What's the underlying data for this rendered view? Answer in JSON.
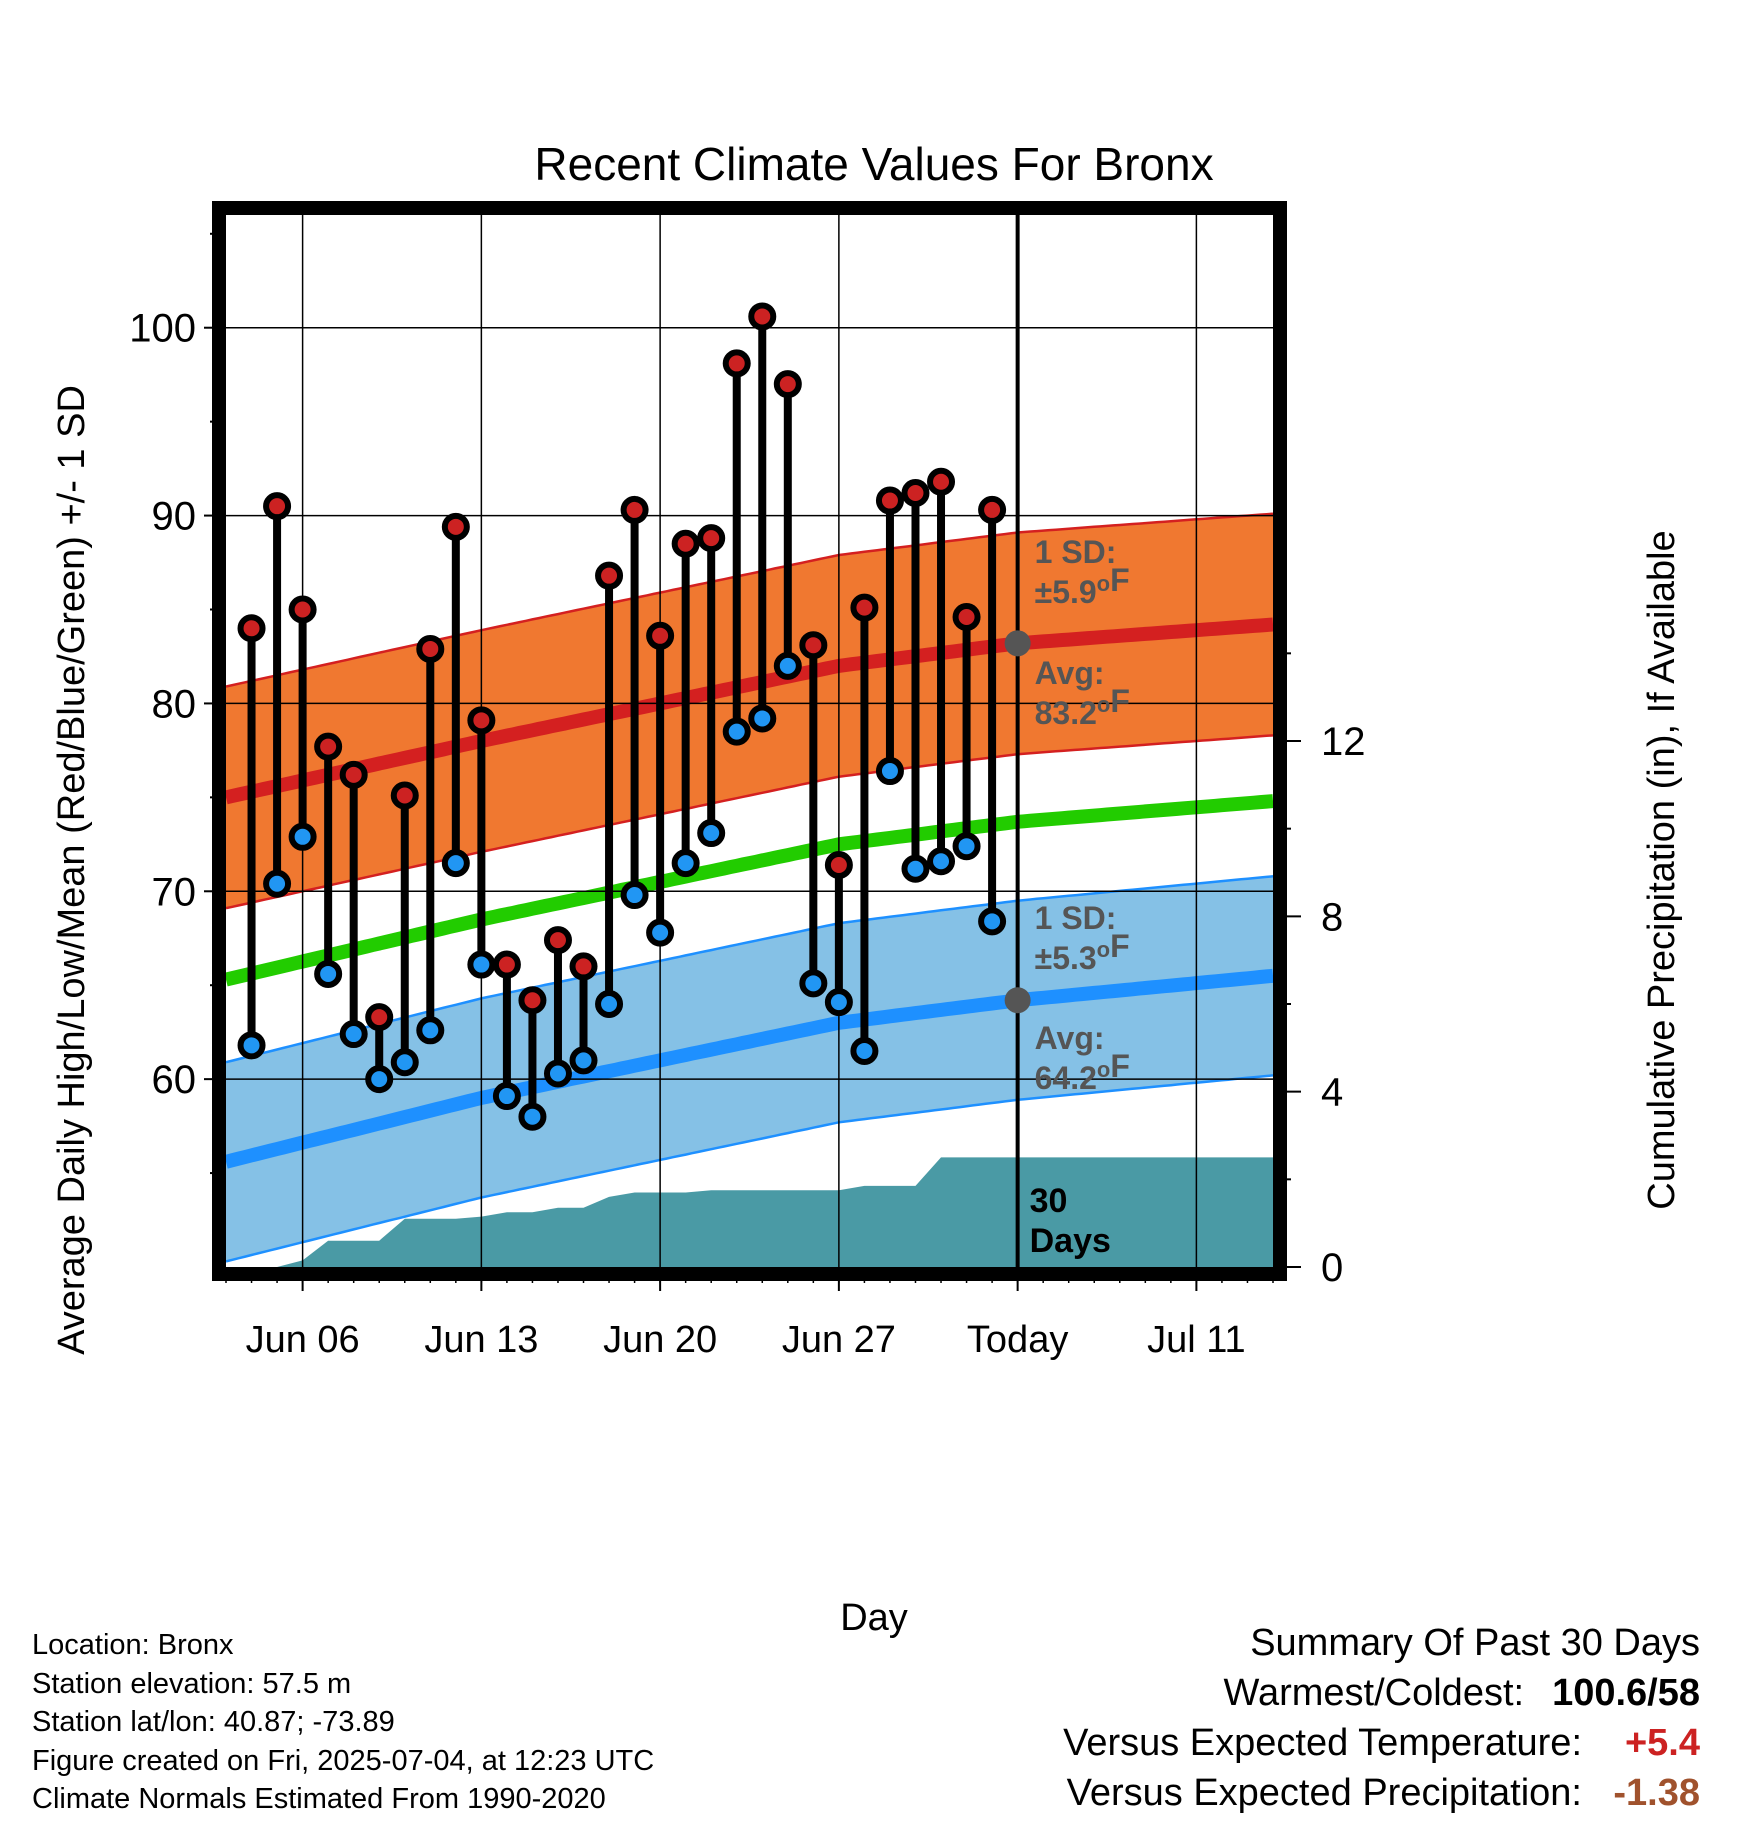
{
  "chart_data": {
    "type": "line",
    "title": "Recent Climate Values For Bronx",
    "xlabel": "Day",
    "ylabel": "Average Daily High/Low/Mean (Red/Blue/Green) +/- 1 SD",
    "y2label": "Cumulative Precipitation (in), If Available",
    "ylim": [
      50,
      106
    ],
    "y2lim": [
      0,
      24
    ],
    "x_start_date": "2025-06-03",
    "x_end_date": "2025-07-14",
    "xticks": [
      {
        "date": "2025-06-06",
        "label": "Jun 06"
      },
      {
        "date": "2025-06-13",
        "label": "Jun 13"
      },
      {
        "date": "2025-06-20",
        "label": "Jun 20"
      },
      {
        "date": "2025-06-27",
        "label": "Jun 27"
      },
      {
        "date": "2025-07-04",
        "label": "Today"
      },
      {
        "date": "2025-07-11",
        "label": "Jul 11"
      }
    ],
    "yticks": [
      60,
      70,
      80,
      90,
      100
    ],
    "y2ticks": [
      0,
      4,
      8,
      12
    ],
    "grid": true,
    "today_date": "2025-07-04",
    "today_label": "Today",
    "highs": [
      {
        "date": "2025-06-04",
        "high": 84.0,
        "low": 61.8
      },
      {
        "date": "2025-06-05",
        "high": 90.5,
        "low": 70.4
      },
      {
        "date": "2025-06-06",
        "high": 85.0,
        "low": 72.9
      },
      {
        "date": "2025-06-07",
        "high": 77.7,
        "low": 65.6
      },
      {
        "date": "2025-06-08",
        "high": 76.2,
        "low": 62.4
      },
      {
        "date": "2025-06-09",
        "high": 63.3,
        "low": 60.0
      },
      {
        "date": "2025-06-10",
        "high": 75.1,
        "low": 60.9
      },
      {
        "date": "2025-06-11",
        "high": 82.9,
        "low": 62.6
      },
      {
        "date": "2025-06-12",
        "high": 89.4,
        "low": 71.5
      },
      {
        "date": "2025-06-13",
        "high": 79.1,
        "low": 66.1
      },
      {
        "date": "2025-06-14",
        "high": 66.1,
        "low": 59.1
      },
      {
        "date": "2025-06-15",
        "high": 64.2,
        "low": 58.0
      },
      {
        "date": "2025-06-16",
        "high": 67.4,
        "low": 60.3
      },
      {
        "date": "2025-06-17",
        "high": 66.0,
        "low": 61.0
      },
      {
        "date": "2025-06-18",
        "high": 86.8,
        "low": 64.0
      },
      {
        "date": "2025-06-19",
        "high": 90.3,
        "low": 69.8
      },
      {
        "date": "2025-06-20",
        "high": 83.6,
        "low": 67.8
      },
      {
        "date": "2025-06-21",
        "high": 88.5,
        "low": 71.5
      },
      {
        "date": "2025-06-22",
        "high": 88.8,
        "low": 73.1
      },
      {
        "date": "2025-06-23",
        "high": 98.1,
        "low": 78.5
      },
      {
        "date": "2025-06-24",
        "high": 100.6,
        "low": 79.2
      },
      {
        "date": "2025-06-25",
        "high": 97.0,
        "low": 82.0
      },
      {
        "date": "2025-06-26",
        "high": 83.1,
        "low": 65.1
      },
      {
        "date": "2025-06-27",
        "high": 71.4,
        "low": 64.1
      },
      {
        "date": "2025-06-28",
        "high": 85.1,
        "low": 61.5
      },
      {
        "date": "2025-06-29",
        "high": 90.8,
        "low": 76.4
      },
      {
        "date": "2025-06-30",
        "high": 91.2,
        "low": 71.2
      },
      {
        "date": "2025-07-01",
        "high": 91.8,
        "low": 71.6
      },
      {
        "date": "2025-07-02",
        "high": 84.6,
        "low": 72.4
      },
      {
        "date": "2025-07-03",
        "high": 90.3,
        "low": 68.4
      }
    ],
    "normal_high": {
      "dates": [
        "2025-06-03",
        "2025-06-13",
        "2025-06-20",
        "2025-06-27",
        "2025-07-04",
        "2025-07-14"
      ],
      "values": [
        75.0,
        78.0,
        80.0,
        82.0,
        83.2,
        84.2
      ],
      "sd_label": "1 SD:",
      "sd_text": "±5.9°F",
      "avg_label": "Avg:",
      "avg_text": "83.2°F"
    },
    "normal_low": {
      "dates": [
        "2025-06-03",
        "2025-06-13",
        "2025-06-20",
        "2025-06-27",
        "2025-07-04",
        "2025-07-14"
      ],
      "values": [
        55.6,
        59.0,
        61.0,
        63.0,
        64.2,
        65.5
      ],
      "sd_label": "1 SD:",
      "sd_text": "±5.3°F",
      "avg_label": "Avg:",
      "avg_text": "64.2°F"
    },
    "normal_mean": {
      "dates": [
        "2025-06-03",
        "2025-06-13",
        "2025-06-20",
        "2025-06-27",
        "2025-07-04",
        "2025-07-14"
      ],
      "values": [
        65.3,
        68.5,
        70.5,
        72.5,
        73.7,
        74.8
      ]
    },
    "precip_cumulative": [
      {
        "date": "2025-06-03",
        "in": 0.0
      },
      {
        "date": "2025-06-05",
        "in": 0.0
      },
      {
        "date": "2025-06-06",
        "in": 0.15
      },
      {
        "date": "2025-06-07",
        "in": 0.6
      },
      {
        "date": "2025-06-08",
        "in": 0.6
      },
      {
        "date": "2025-06-09",
        "in": 0.6
      },
      {
        "date": "2025-06-10",
        "in": 1.1
      },
      {
        "date": "2025-06-11",
        "in": 1.1
      },
      {
        "date": "2025-06-12",
        "in": 1.1
      },
      {
        "date": "2025-06-13",
        "in": 1.15
      },
      {
        "date": "2025-06-14",
        "in": 1.25
      },
      {
        "date": "2025-06-15",
        "in": 1.25
      },
      {
        "date": "2025-06-16",
        "in": 1.35
      },
      {
        "date": "2025-06-17",
        "in": 1.35
      },
      {
        "date": "2025-06-18",
        "in": 1.6
      },
      {
        "date": "2025-06-19",
        "in": 1.7
      },
      {
        "date": "2025-06-20",
        "in": 1.7
      },
      {
        "date": "2025-06-21",
        "in": 1.7
      },
      {
        "date": "2025-06-22",
        "in": 1.75
      },
      {
        "date": "2025-06-23",
        "in": 1.75
      },
      {
        "date": "2025-06-24",
        "in": 1.75
      },
      {
        "date": "2025-06-25",
        "in": 1.75
      },
      {
        "date": "2025-06-26",
        "in": 1.75
      },
      {
        "date": "2025-06-27",
        "in": 1.75
      },
      {
        "date": "2025-06-28",
        "in": 1.85
      },
      {
        "date": "2025-06-29",
        "in": 1.85
      },
      {
        "date": "2025-06-30",
        "in": 1.85
      },
      {
        "date": "2025-07-01",
        "in": 2.5
      },
      {
        "date": "2025-07-14",
        "in": 2.5
      }
    ],
    "precip_label_line1": "30",
    "precip_label_line2": "Days",
    "colors": {
      "high_band": "#f07830",
      "high_line": "#d42020",
      "low_band": "#85c1e6",
      "low_line": "#1e90ff",
      "mean_line": "#22cc00",
      "precip": "#4a9aa5",
      "high_dot": "#cc2222",
      "low_dot": "#2196f3",
      "avg_dot": "#555555",
      "annot": "#555555"
    }
  },
  "footer": {
    "location": "Location: Bronx",
    "elevation": "Station elevation: 57.5 m",
    "latlon": "Station lat/lon: 40.87; -73.89",
    "created": "Figure created on Fri, 2025-07-04, at 12:23 UTC",
    "normals": "Climate Normals Estimated From 1990-2020"
  },
  "summary": {
    "title": "Summary Of Past 30 Days",
    "warm_cold_label": "Warmest/Coldest:",
    "warm_cold_value": "100.6/58",
    "temp_label": "Versus Expected Temperature:",
    "temp_value": "+5.4",
    "temp_color": "#cc2222",
    "precip_label": "Versus Expected Precipitation:",
    "precip_value": "-1.38",
    "precip_color": "#a0522d"
  }
}
